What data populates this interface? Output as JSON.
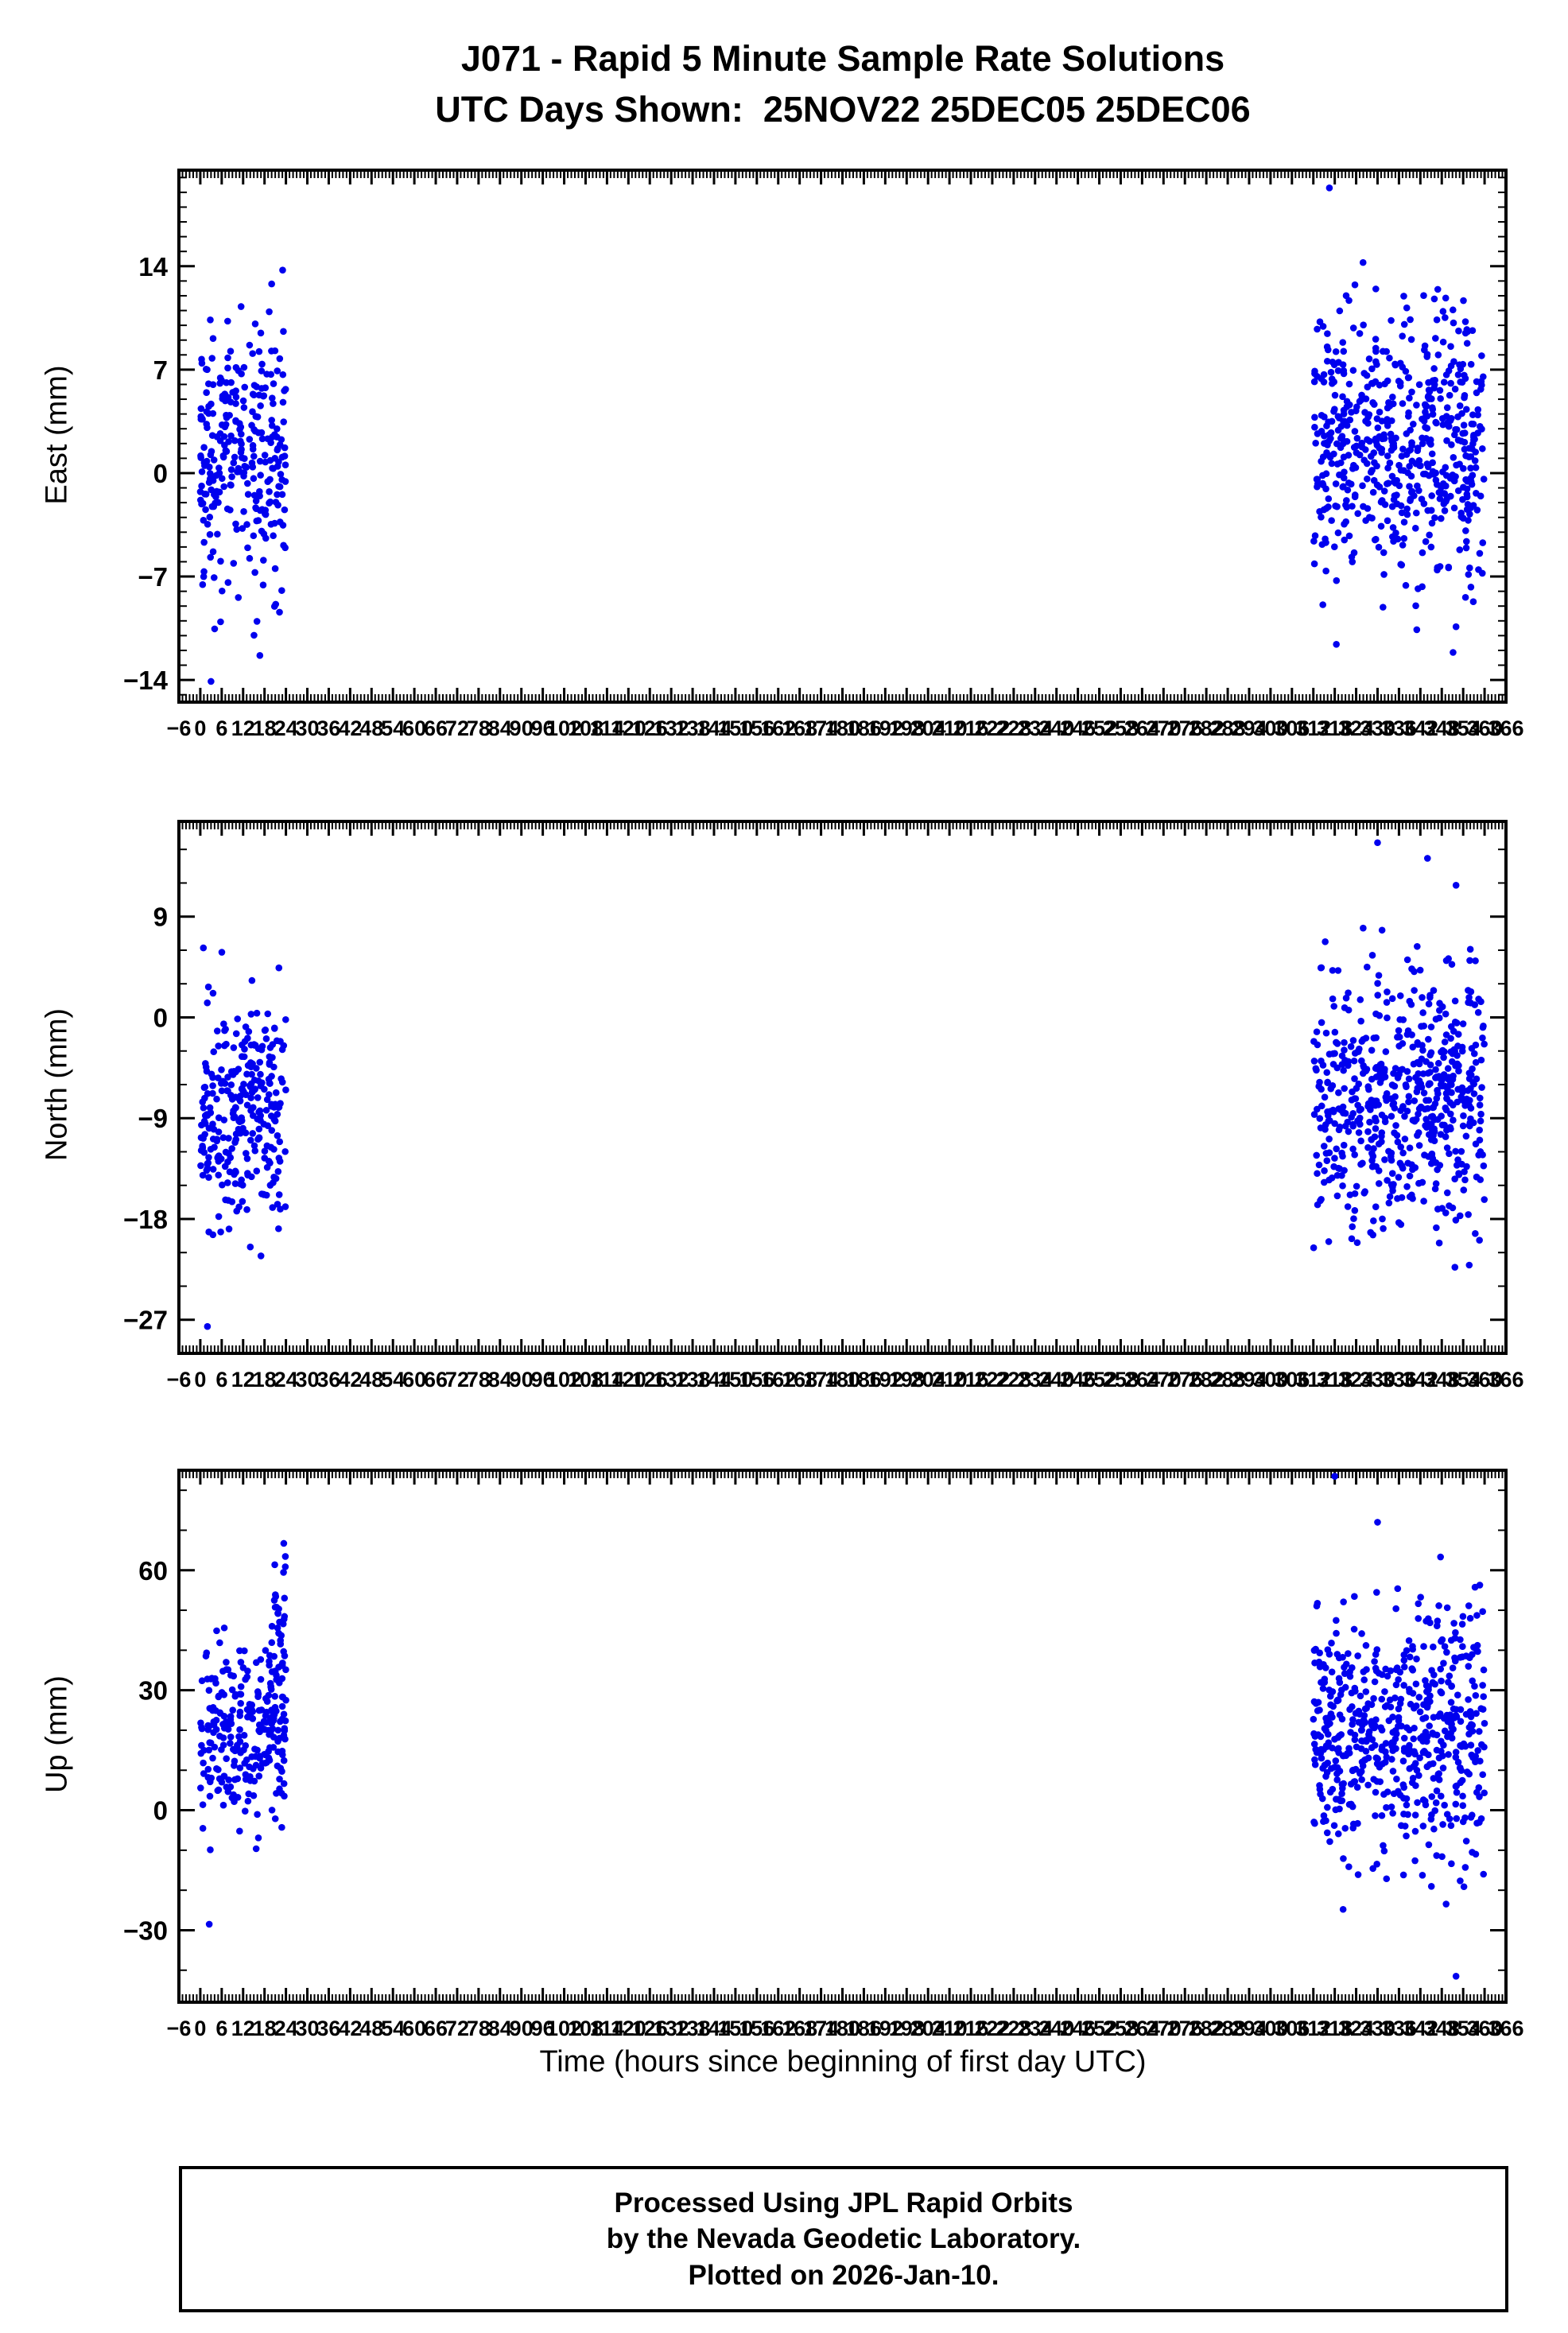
{
  "header": {
    "title": "J071 - Rapid 5 Minute Sample Rate Solutions",
    "subtitle": "UTC Days Shown:  25NOV22 25DEC05 25DEC06"
  },
  "axes": {
    "xlabel": "Time (hours since beginning of first day UTC)",
    "xlim": [
      -6,
      366
    ],
    "xtick_step": 6,
    "x_minor_step": 1,
    "grid": false,
    "marker_color": "#0000EE",
    "frame_color": "#000000"
  },
  "chart_data": [
    {
      "type": "scatter",
      "name": "east",
      "ylabel": "East (mm)",
      "ylim": [
        -15.5,
        20.5
      ],
      "yticks": [
        -14,
        -7,
        0,
        7,
        14
      ],
      "y_minor_step": 1,
      "clusters": [
        {
          "x_range": [
            0,
            24
          ],
          "n": 288,
          "y_mean": 1.0,
          "y_std": 4.6,
          "y_clip": [
            -13.0,
            14.3
          ]
        },
        {
          "x_range": [
            312,
            360
          ],
          "n": 576,
          "y_mean": 2.0,
          "y_std": 4.8,
          "y_clip": [
            -12.5,
            15.0
          ]
        }
      ],
      "outlier_points": [
        [
          3,
          -14.1
        ],
        [
          316.5,
          19.3
        ],
        [
          341,
          -10.6
        ],
        [
          352,
          -10.4
        ],
        [
          20,
          12.8
        ]
      ]
    },
    {
      "type": "scatter",
      "name": "north",
      "ylabel": "North (mm)",
      "ylim": [
        -30.0,
        17.5
      ],
      "yticks": [
        -27,
        -18,
        -9,
        0,
        9
      ],
      "y_minor_step": 3,
      "clusters": [
        {
          "x_range": [
            0,
            24
          ],
          "n": 288,
          "y_mean": -8.5,
          "y_std": 5.2,
          "y_clip": [
            -21.0,
            8.8
          ]
        },
        {
          "x_range": [
            312,
            360
          ],
          "n": 576,
          "y_mean": -7.5,
          "y_std": 5.6,
          "y_clip": [
            -22.5,
            13.5
          ]
        }
      ],
      "outlier_points": [
        [
          2,
          -27.6
        ],
        [
          17,
          -21.3
        ],
        [
          330,
          15.6
        ],
        [
          344,
          14.2
        ],
        [
          352,
          11.8
        ]
      ]
    },
    {
      "type": "scatter",
      "name": "up",
      "ylabel": "Up (mm)",
      "ylim": [
        -48,
        85
      ],
      "yticks": [
        -30,
        0,
        30,
        60
      ],
      "y_minor_step": 10,
      "clusters": [
        {
          "x_range": [
            0,
            24
          ],
          "n": 258,
          "y_mean": 18,
          "y_std": 12,
          "y_clip": [
            -28,
            52
          ]
        },
        {
          "x_range": [
            20.5,
            24
          ],
          "n": 30,
          "y_mean": 48,
          "y_std": 11,
          "y_clip": [
            8,
            67
          ]
        },
        {
          "x_range": [
            312,
            360
          ],
          "n": 576,
          "y_mean": 20,
          "y_std": 16,
          "y_clip": [
            -42,
            70
          ]
        }
      ],
      "outlier_points": [
        [
          318,
          83.5
        ],
        [
          352,
          -41.5
        ],
        [
          330,
          72
        ],
        [
          2.5,
          -28.5
        ]
      ]
    }
  ],
  "footer": {
    "line1": "Processed Using JPL Rapid Orbits",
    "line2": "by the Nevada Geodetic Laboratory.",
    "line3": "Plotted on 2026-Jan-10."
  }
}
